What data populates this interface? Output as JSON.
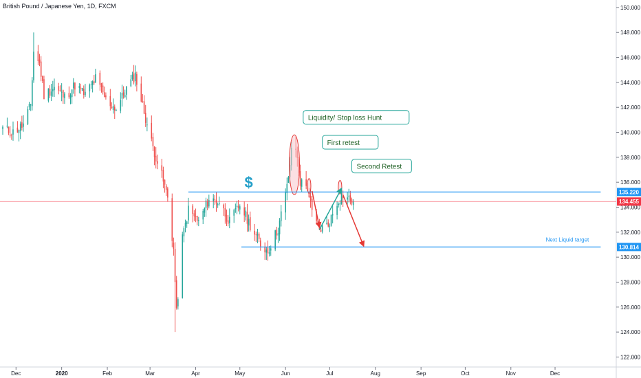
{
  "header": {
    "title": "British Pound / Japanese Yen, 1D, FXCM"
  },
  "colors": {
    "up": "#26a69a",
    "down": "#ef5350",
    "level": "#2196f3",
    "price_line": "#f23645",
    "annotation": "#1b5e20",
    "ellipse_fill": "#f8c6cc",
    "ellipse_stroke": "#e53935",
    "axis_text": "#131722"
  },
  "chart_data": {
    "type": "candlestick",
    "title": "British Pound / Japanese Yen, 1D, FXCM",
    "y_ticks": [
      "122.000",
      "124.000",
      "126.000",
      "128.000",
      "130.000",
      "132.000",
      "134.000",
      "136.000",
      "138.000",
      "140.000",
      "142.000",
      "144.000",
      "146.000",
      "148.000",
      "150.000"
    ],
    "ylim": [
      121.2,
      150.6
    ],
    "x_ticks": [
      "Dec",
      "2020",
      "Feb",
      "Mar",
      "Apr",
      "May",
      "Jun",
      "Jul",
      "Aug",
      "Sep",
      "Oct",
      "Nov",
      "Dec"
    ],
    "close_path": [
      [
        "2019-11-22",
        140.3
      ],
      [
        "2019-11-29",
        140.0
      ],
      [
        "2019-12-06",
        140.6
      ],
      [
        "2019-12-11",
        142.2
      ],
      [
        "2019-12-13",
        146.5
      ],
      [
        "2019-12-17",
        145.5
      ],
      [
        "2019-12-20",
        143.0
      ],
      [
        "2019-12-27",
        143.6
      ],
      [
        "2020-01-03",
        142.8
      ],
      [
        "2020-01-10",
        143.8
      ],
      [
        "2020-01-17",
        143.0
      ],
      [
        "2020-01-24",
        144.3
      ],
      [
        "2020-01-31",
        142.6
      ],
      [
        "2020-02-07",
        141.9
      ],
      [
        "2020-02-14",
        143.5
      ],
      [
        "2020-02-20",
        144.6
      ],
      [
        "2020-02-24",
        142.6
      ],
      [
        "2020-03-02",
        139.2
      ],
      [
        "2020-03-09",
        136.5
      ],
      [
        "2020-03-13",
        134.8
      ],
      [
        "2020-03-17",
        130.6
      ],
      [
        "2020-03-19",
        125.5
      ],
      [
        "2020-03-23",
        131.5
      ],
      [
        "2020-03-27",
        133.8
      ],
      [
        "2020-04-03",
        132.8
      ],
      [
        "2020-04-10",
        134.7
      ],
      [
        "2020-04-17",
        134.4
      ],
      [
        "2020-04-24",
        132.8
      ],
      [
        "2020-05-01",
        134.2
      ],
      [
        "2020-05-08",
        132.6
      ],
      [
        "2020-05-15",
        131.0
      ],
      [
        "2020-05-20",
        130.5
      ],
      [
        "2020-05-27",
        132.3
      ],
      [
        "2020-06-02",
        135.6
      ],
      [
        "2020-06-05",
        138.4
      ],
      [
        "2020-06-08",
        138.7
      ],
      [
        "2020-06-11",
        136.0
      ],
      [
        "2020-06-16",
        135.6
      ],
      [
        "2020-06-19",
        133.5
      ],
      [
        "2020-06-24",
        132.2
      ],
      [
        "2020-06-30",
        132.6
      ],
      [
        "2020-07-07",
        134.6
      ],
      [
        "2020-07-10",
        135.0
      ],
      [
        "2020-07-15",
        134.6
      ],
      [
        "2020-07-17",
        134.455
      ]
    ],
    "levels": [
      {
        "name": "resistance",
        "value": 135.22,
        "label": "135.220",
        "from": "2020-03-27",
        "to": "2021-01-01"
      },
      {
        "name": "liquid-target",
        "value": 130.814,
        "label": "130.814",
        "from": "2020-05-02",
        "to": "2021-01-01"
      },
      {
        "name": "last-price",
        "value": 134.455,
        "label": "134.455"
      }
    ],
    "annotations": [
      {
        "text": "Liquidity/ Stop loss Hunt",
        "box_at": [
          "2020-06-13",
          141.2
        ]
      },
      {
        "text": "First retest",
        "box_at": [
          "2020-06-26",
          139.2
        ]
      },
      {
        "text": "Second Retest",
        "box_at": [
          "2020-07-16",
          137.3
        ]
      },
      {
        "text": "Next Liquid target",
        "at": [
          "2020-12-24",
          131.4
        ]
      },
      {
        "text": "$",
        "at": [
          "2020-05-07",
          135.9
        ]
      }
    ],
    "highlights": [
      {
        "shape": "ellipse",
        "center": [
          "2020-06-07",
          137.4
        ],
        "radius_days": 3.5,
        "radius_value": 2.4
      },
      {
        "shape": "circle",
        "center": [
          "2020-06-17",
          135.7
        ],
        "radius_days": 1.2,
        "radius_value": 0.6
      },
      {
        "shape": "circle",
        "center": [
          "2020-07-08",
          135.6
        ],
        "radius_days": 1.2,
        "radius_value": 0.55
      }
    ],
    "arrows": [
      {
        "from": [
          "2020-06-19",
          135.3
        ],
        "to": [
          "2020-06-24",
          132.4
        ],
        "color": "red"
      },
      {
        "from": [
          "2020-06-24",
          132.2
        ],
        "to": [
          "2020-07-09",
          135.5
        ],
        "color": "green"
      },
      {
        "from": [
          "2020-07-10",
          135.0
        ],
        "to": [
          "2020-07-24",
          130.9
        ],
        "color": "red"
      }
    ]
  }
}
